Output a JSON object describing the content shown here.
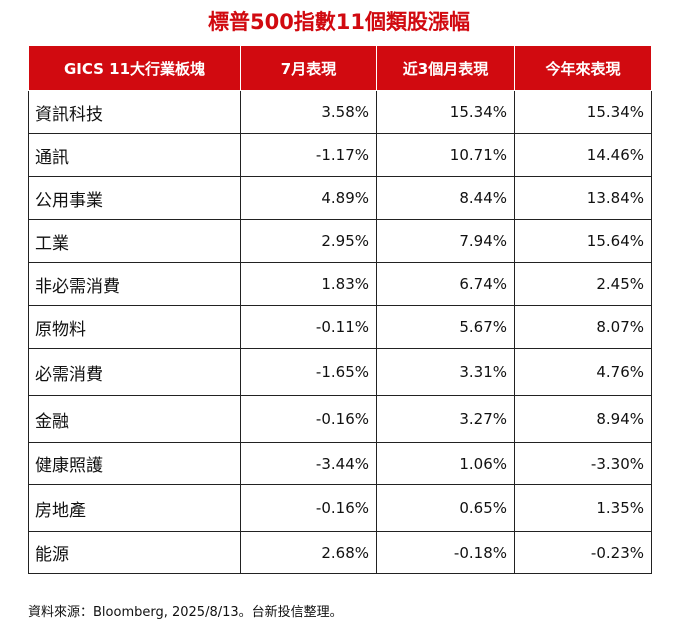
{
  "colors": {
    "header_bg": "#d10a10",
    "title": "#d10a10",
    "grid": "#222222"
  },
  "chart_data": {
    "type": "table",
    "title": "標普500指數11個類股漲幅",
    "columns": [
      "GICS 11大行業板塊",
      "7月表現",
      "近3個月表現",
      "今年來表現"
    ],
    "rows": [
      {
        "sector": "資訊科技",
        "values": [
          "3.58%",
          "15.34%",
          "15.34%"
        ]
      },
      {
        "sector": "通訊",
        "values": [
          "-1.17%",
          "10.71%",
          "14.46%"
        ]
      },
      {
        "sector": "公用事業",
        "values": [
          "4.89%",
          "8.44%",
          "13.84%"
        ]
      },
      {
        "sector": "工業",
        "values": [
          "2.95%",
          "7.94%",
          "15.64%"
        ]
      },
      {
        "sector": "非必需消費",
        "values": [
          "1.83%",
          "6.74%",
          "2.45%"
        ]
      },
      {
        "sector": "原物料",
        "values": [
          "-0.11%",
          "5.67%",
          "8.07%"
        ]
      },
      {
        "sector": "必需消費",
        "values": [
          "-1.65%",
          "3.31%",
          "4.76%"
        ]
      },
      {
        "sector": "金融",
        "values": [
          "-0.16%",
          "3.27%",
          "8.94%"
        ]
      },
      {
        "sector": "健康照護",
        "values": [
          "-3.44%",
          "1.06%",
          "-3.30%"
        ]
      },
      {
        "sector": "房地產",
        "values": [
          "-0.16%",
          "0.65%",
          "1.35%"
        ]
      },
      {
        "sector": "能源",
        "values": [
          "2.68%",
          "-0.18%",
          "-0.23%"
        ]
      }
    ],
    "source": "資料來源：Bloomberg, 2025/8/13。台新投信整理。"
  }
}
